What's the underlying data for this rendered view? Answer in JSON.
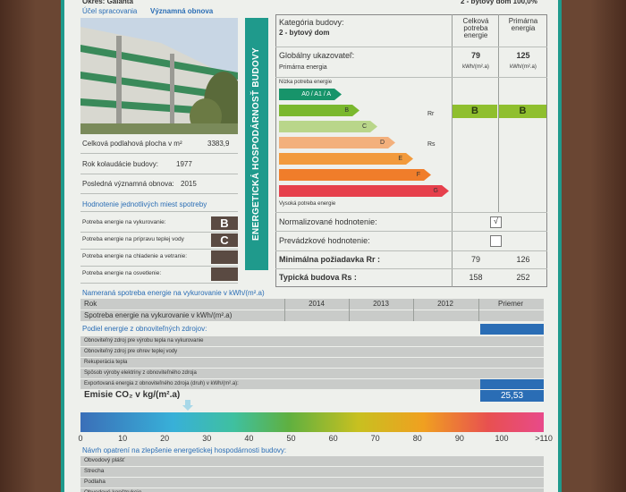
{
  "header": {
    "district": "Okres: Galanta",
    "category_cut": "2 - bytový dom 100,0%"
  },
  "purpose": {
    "label": "Účel spracovania",
    "value": "Významná obnova"
  },
  "vertical_title": "ENERGETICKÁ HOSPODÁRNOSŤ BUDOVY",
  "building": [
    {
      "label": "Celková podlahová plocha v m²",
      "value": "3383,9"
    },
    {
      "label": "Rok kolaudácie budovy:",
      "value": "1977"
    },
    {
      "label": "Posledná významná obnova:",
      "value": "2015"
    }
  ],
  "consumption": {
    "title": "Hodnotenie jednotlivých miest spotreby",
    "rows": [
      {
        "label": "Potreba energie na vykurovanie:",
        "grade": "B"
      },
      {
        "label": "Potreba energie na prípravu teplej vody",
        "grade": "C"
      },
      {
        "label": "Potreba energie na chladenie a vetranie:"
      },
      {
        "label": "Potreba energie na osvetlenie:"
      }
    ]
  },
  "rating": {
    "category_label": "Kategória budovy:",
    "category_value": "2 - bytový dom",
    "col_total": "Celková potreba energie",
    "col_primary": "Primárna energia",
    "global_label": "Globálny ukazovateľ:",
    "global_sub": "Primárna energia",
    "global_total": "79",
    "global_primary": "125",
    "unit": "kWh/(m².a)",
    "low": "Nízka potreba energie",
    "high": "Vysoká potreba energie",
    "classes": [
      "A0 / A1 / A",
      "B",
      "C",
      "D",
      "E",
      "F",
      "G"
    ],
    "rr": "Rr",
    "rs": "Rs",
    "total_class": "B",
    "primary_class": "B",
    "normalized": "Normalizované hodnotenie:",
    "check": "√",
    "operational": "Prevádzkové hodnotenie:",
    "min_label": "Minimálna požiadavka Rr :",
    "min_values": [
      "79",
      "126"
    ],
    "typical_label": "Typická budova Rs :",
    "typical_values": [
      "158",
      "252"
    ]
  },
  "measured": {
    "title": "Nameraná spotreba energie na vykurovanie v kWh/(m².a)",
    "year_label": "Rok",
    "years": [
      "2014",
      "2013",
      "2012",
      "Priemer"
    ],
    "row_label": "Spotreba energie na vykurovanie v kWh/(m².a)"
  },
  "renewables": {
    "title": "Podiel energie z obnoviteľných zdrojov:",
    "rows": [
      "Obnoviteľný zdroj pre výrobu tepla na vykurovanie",
      "Obnoviteľný zdroj pre ohrev teplej vody",
      "Rekuperácia tepla",
      "Spôsob výroby elektriny z obnoviteľného zdroja",
      "Exportovaná energia z obnoviteľného zdroja (druh) v kWh/(m².a):"
    ]
  },
  "emissions": {
    "label": "Emisie CO₂ v kg/(m².a)",
    "value": "25,53"
  },
  "scale": [
    "0",
    "10",
    "20",
    "30",
    "40",
    "50",
    "60",
    "70",
    "80",
    "90",
    "100",
    ">110"
  ],
  "measures": {
    "title": "Návrh opatrení na zlepšenie energetickej hospodárnosti budovy:",
    "rows": [
      "Obvodový plášť",
      "Strecha",
      "Podlaha",
      "Obvodové konštrukcie"
    ]
  }
}
